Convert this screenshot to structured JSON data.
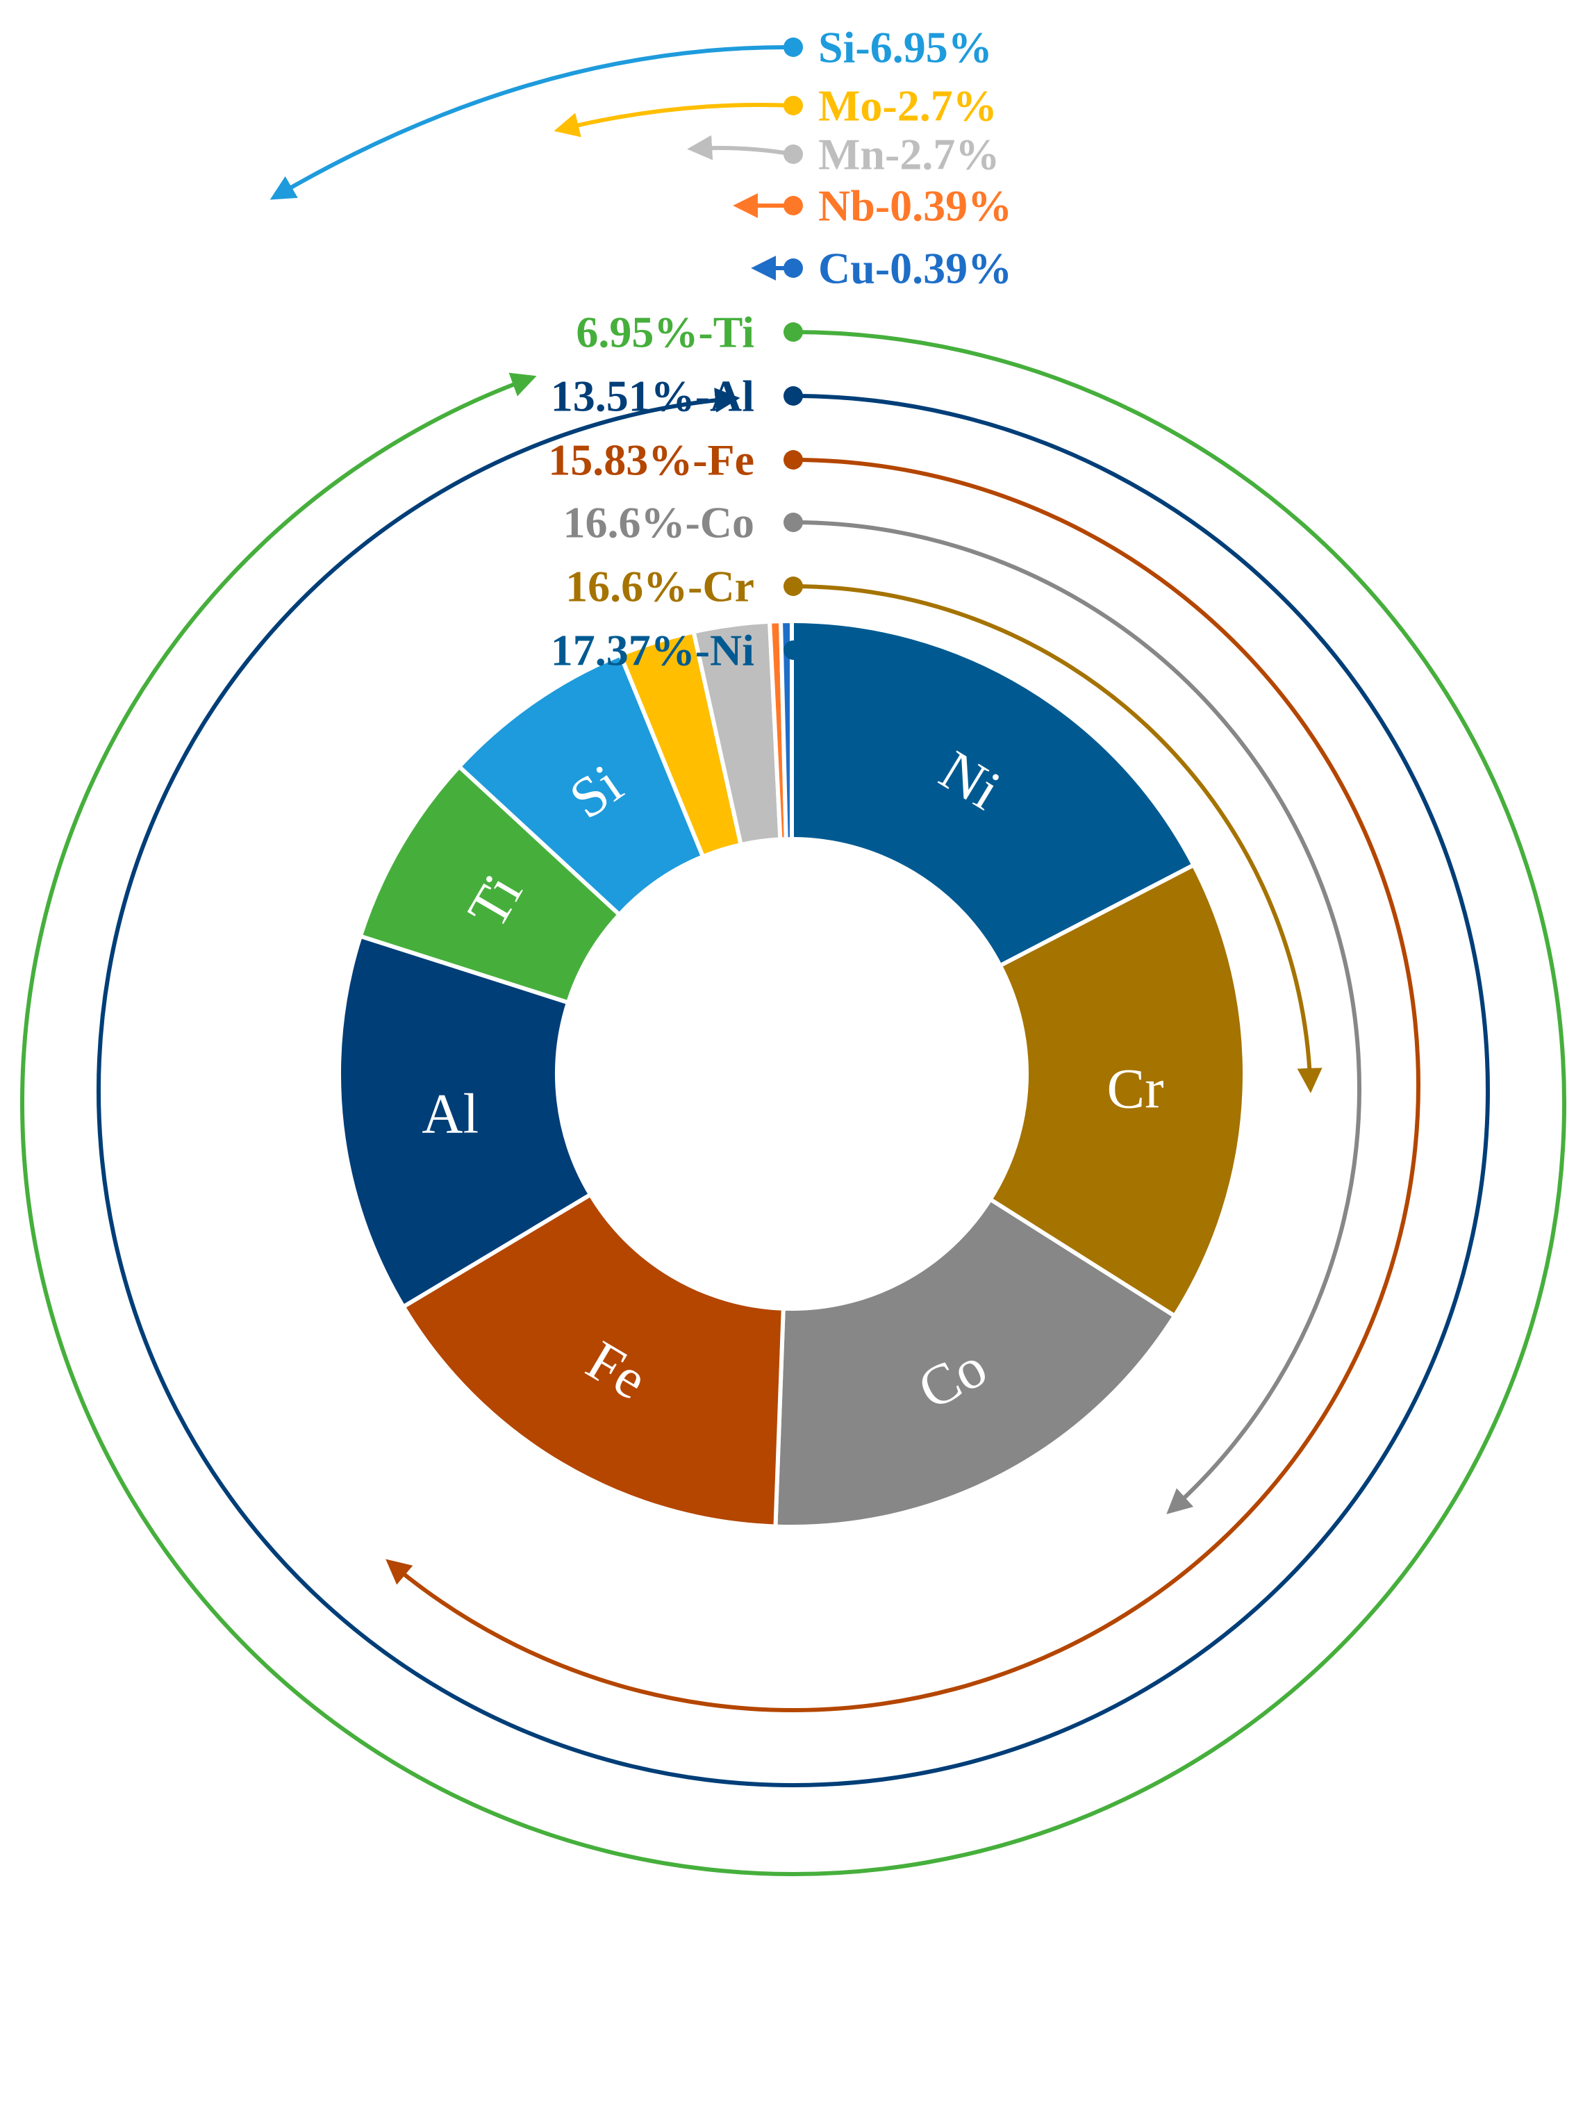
{
  "chart_data": {
    "type": "pie",
    "variant": "donut",
    "title": "",
    "unit": "%",
    "slices": [
      {
        "element": "Ni",
        "value": 17.37,
        "legend": "17.37%-Ni",
        "color": "#005A91",
        "label_color": "#005A91"
      },
      {
        "element": "Cr",
        "value": 16.6,
        "legend": "16.6%-Cr",
        "color": "#A57300",
        "label_color": "#A57300"
      },
      {
        "element": "Co",
        "value": 16.6,
        "legend": "16.6%-Co",
        "color": "#878787",
        "label_color": "#878787"
      },
      {
        "element": "Fe",
        "value": 15.83,
        "legend": "15.83%-Fe",
        "color": "#B44600",
        "label_color": "#B44600"
      },
      {
        "element": "Al",
        "value": 13.51,
        "legend": "13.51%-Al",
        "color": "#003E78",
        "label_color": "#003E78"
      },
      {
        "element": "Ti",
        "value": 6.95,
        "legend": "6.95%-Ti",
        "color": "#46AF3C",
        "label_color": "#46AF3C"
      },
      {
        "element": "Si",
        "value": 6.95,
        "legend": "Si-6.95%",
        "color": "#1E9BDC",
        "label_color": "#1E9BDC"
      },
      {
        "element": "Mo",
        "value": 2.7,
        "legend": "Mo-2.7%",
        "color": "#FFBE00",
        "label_color": "#FFBE00"
      },
      {
        "element": "Mn",
        "value": 2.7,
        "legend": "Mn-2.7%",
        "color": "#BEBEBE",
        "label_color": "#BEBEBE"
      },
      {
        "element": "Nb",
        "value": 0.39,
        "legend": "Nb-0.39%",
        "color": "#FF7828",
        "label_color": "#FF7828"
      },
      {
        "element": "Cu",
        "value": 0.39,
        "legend": "Cu-0.39%",
        "color": "#1E6EC8",
        "label_color": "#1E6EC8"
      }
    ]
  }
}
